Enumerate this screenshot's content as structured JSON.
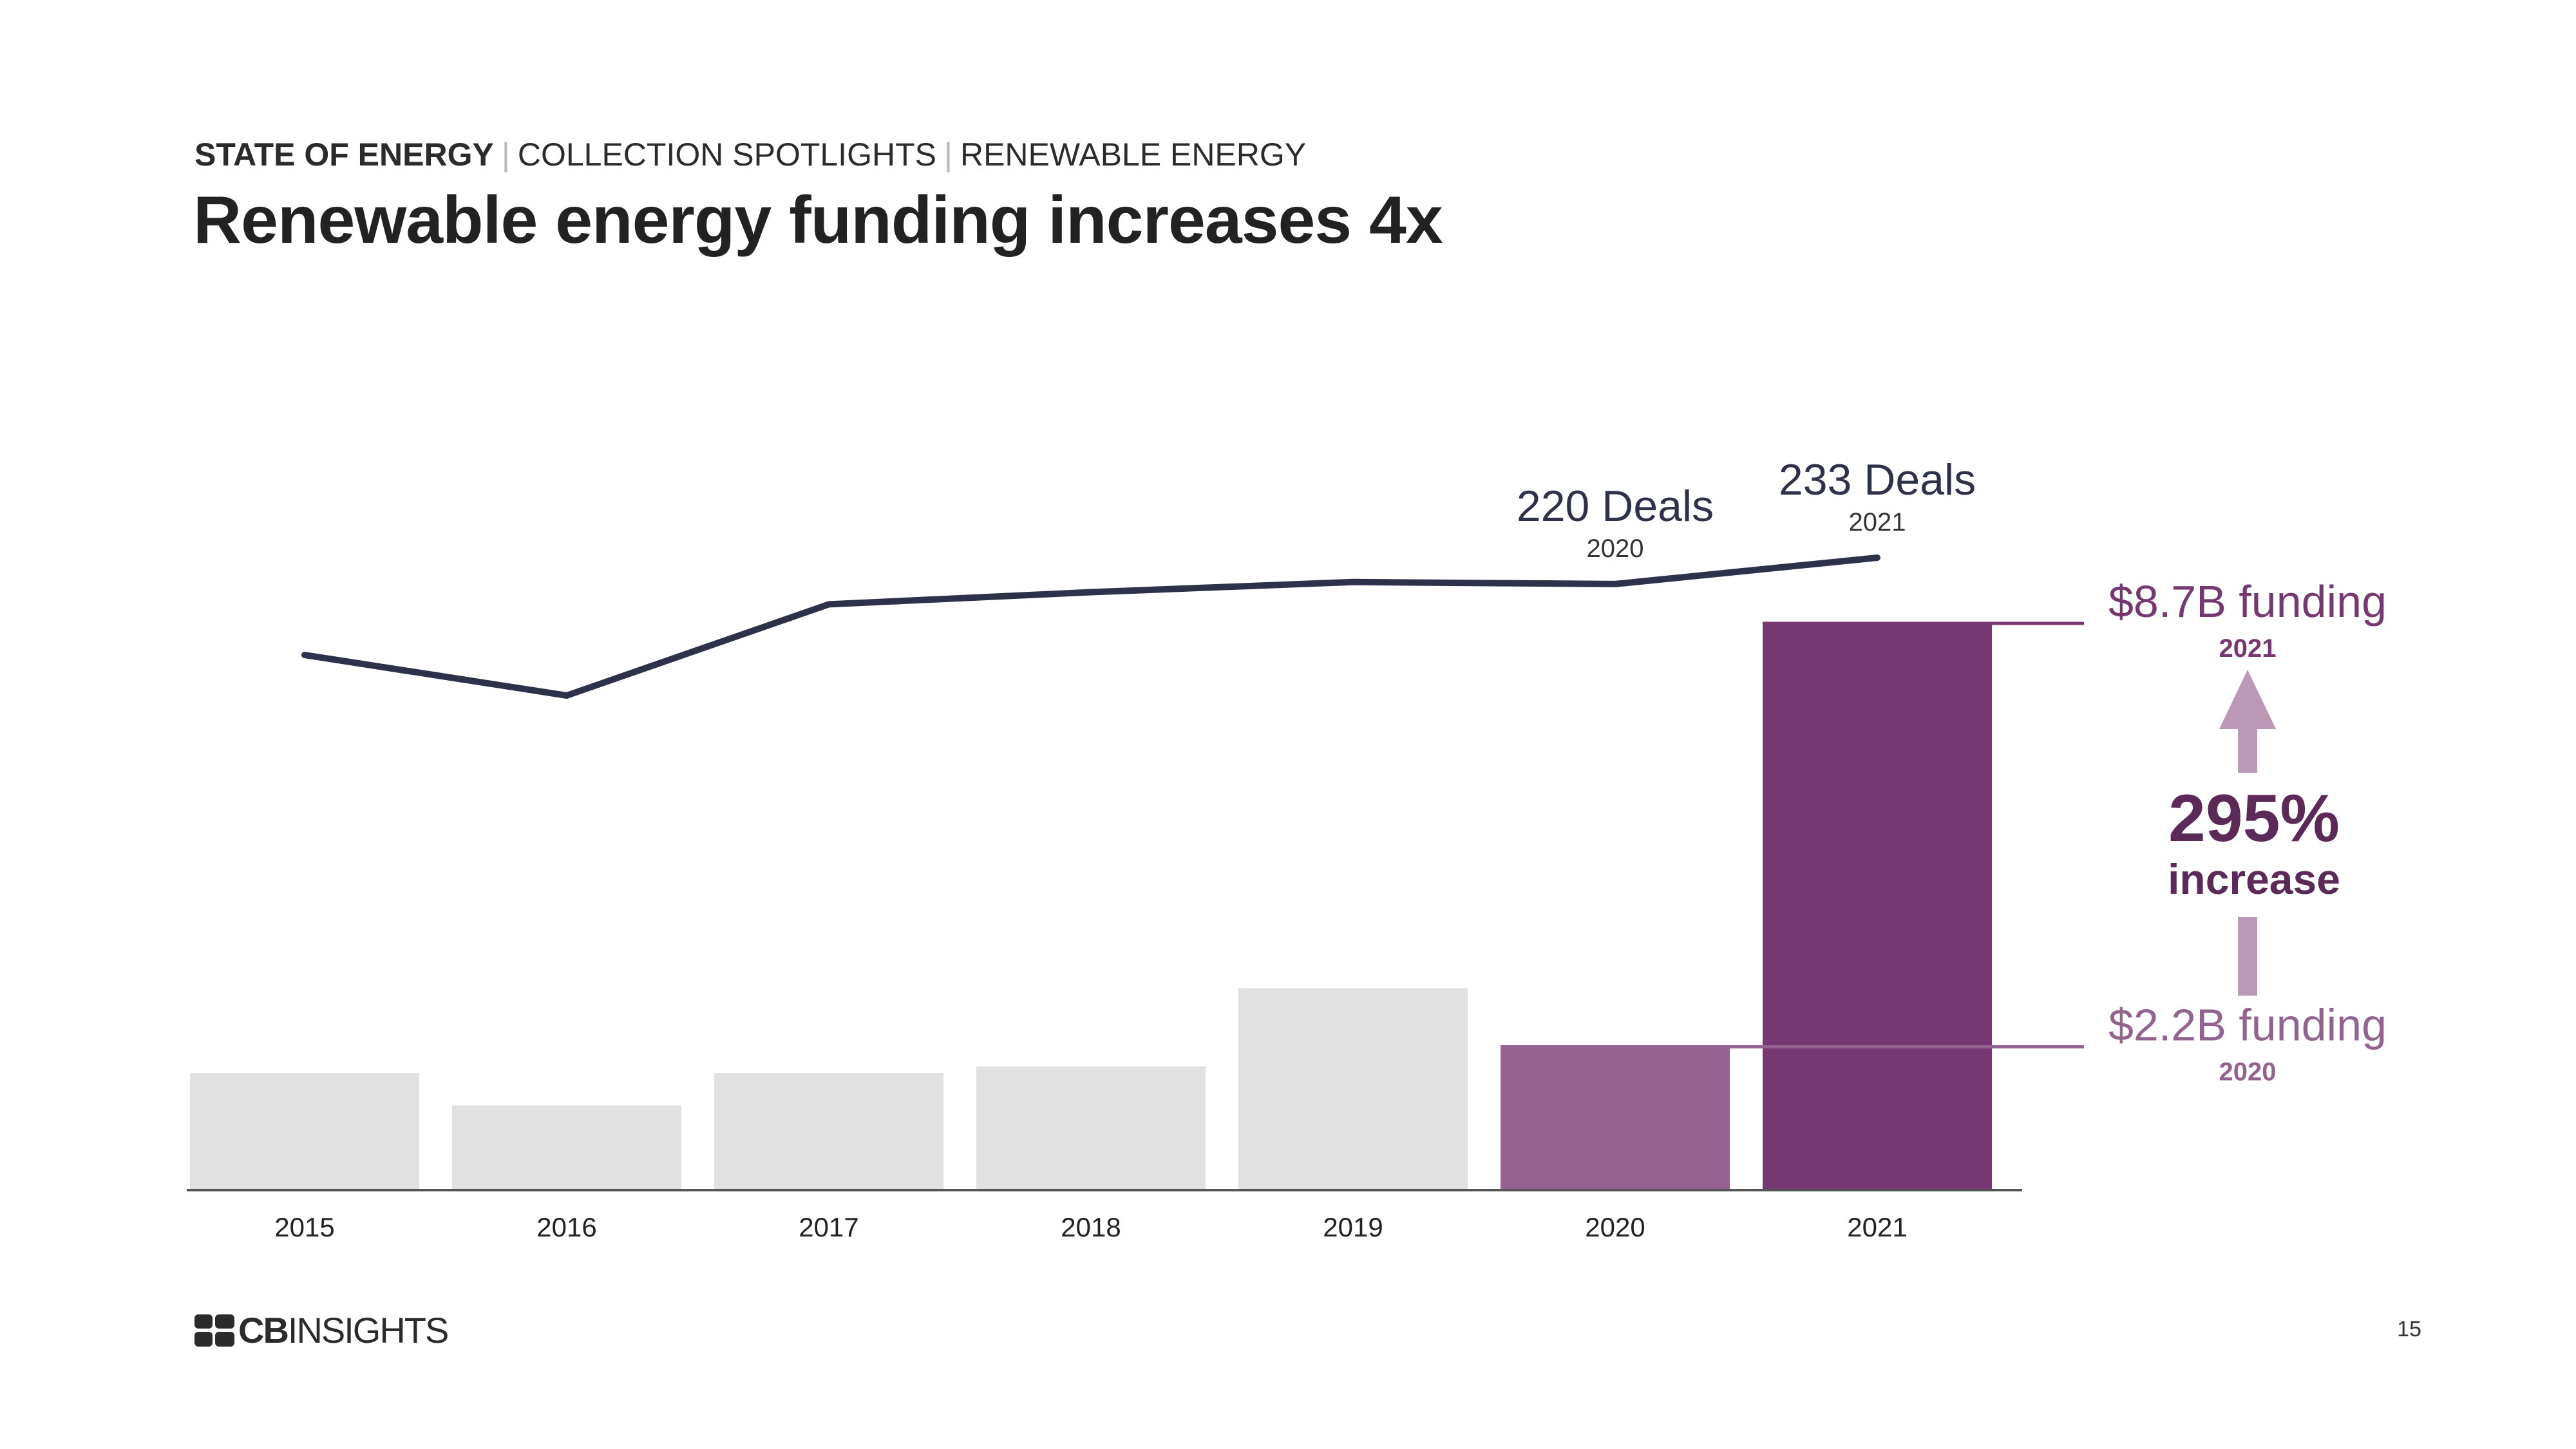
{
  "header": {
    "breadcrumb": [
      "STATE OF ENERGY",
      "COLLECTION SPOTLIGHTS",
      "RENEWABLE ENERGY"
    ],
    "title": "Renewable energy funding increases 4x"
  },
  "chart_data": {
    "type": "bar",
    "title": "Renewable energy funding increases 4x",
    "categories": [
      "2015",
      "2016",
      "2017",
      "2018",
      "2019",
      "2020",
      "2021"
    ],
    "series": [
      {
        "name": "Funding ($B)",
        "kind": "bar",
        "values": [
          1.8,
          1.3,
          1.8,
          1.9,
          3.1,
          2.2,
          8.7
        ],
        "colors": [
          "#e1e1e1",
          "#e1e1e1",
          "#e1e1e1",
          "#e1e1e1",
          "#e1e1e1",
          "#93628f",
          "#773872"
        ]
      },
      {
        "name": "Deals",
        "kind": "line",
        "values": [
          185,
          165,
          210,
          216,
          221,
          220,
          233
        ],
        "color": "#2d3149"
      }
    ],
    "ylim_funding": [
      0,
      8.7
    ],
    "ylim_deals": [
      0,
      233
    ],
    "deal_labels": [
      {
        "category": "2020",
        "title": "220 Deals",
        "subtitle": "2020"
      },
      {
        "category": "2021",
        "title": "233 Deals",
        "subtitle": "2021"
      }
    ],
    "funding_callouts": [
      {
        "category": "2021",
        "title": "$8.7B funding",
        "subtitle": "2021",
        "color": "#773872"
      },
      {
        "category": "2020",
        "title": "$2.2B funding",
        "subtitle": "2020",
        "color": "#93628f"
      }
    ],
    "increase": {
      "value": "295%",
      "label": "increase",
      "color": "#5c2a58",
      "arrow_color": "#b999b6"
    }
  },
  "footer": {
    "logo_cb": "CB",
    "logo_rest": "INSIGHTS",
    "page_number": "15"
  }
}
